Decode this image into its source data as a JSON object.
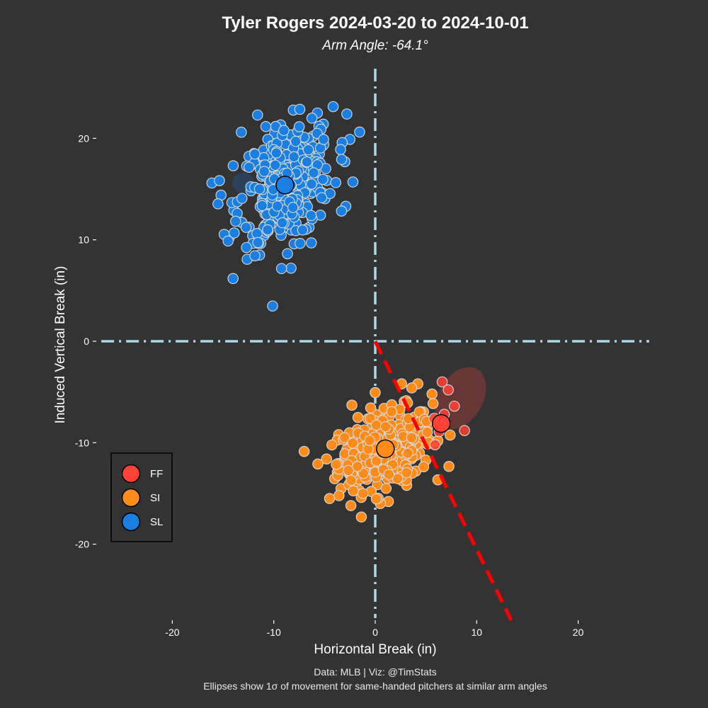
{
  "chart_data": {
    "type": "scatter",
    "title": "Tyler Rogers 2024-03-20 to 2024-10-01",
    "subtitle": "Arm Angle: -64.1°",
    "xlabel": "Horizontal Break (in)",
    "ylabel": "Induced Vertical Break (in)",
    "xlim": [
      -27,
      27
    ],
    "ylim": [
      -27.5,
      27
    ],
    "x_ticks": [
      -20,
      -10,
      0,
      10,
      20
    ],
    "y_ticks": [
      -20,
      -10,
      0,
      10,
      20
    ],
    "x_tick_labels": [
      "-20",
      "-10",
      "0",
      "10",
      "20"
    ],
    "y_tick_labels": [
      "-20",
      "-10",
      "0",
      "10",
      "20"
    ],
    "grid": false,
    "legend_position": "bottom-left",
    "caption_line1": "Data: MLB | Viz: @TimStats",
    "caption_line2": "Ellipses show 1σ of movement for same-handed pitchers at similar arm angles",
    "reference_lines": {
      "horizontal_zero": {
        "y": 0,
        "color": "#add8e6",
        "style": "dash-dot"
      },
      "vertical_zero": {
        "x": 0,
        "color": "#add8e6",
        "style": "dash-dot"
      },
      "arm_angle_line": {
        "x": [
          0,
          13.4
        ],
        "y": [
          0,
          -27.5
        ],
        "color": "#ff0000",
        "style": "dashed"
      }
    },
    "series": [
      {
        "name": "FF",
        "color": "#ff4136",
        "mean": {
          "x": 6.5,
          "y": -8.1
        },
        "ellipse": {
          "cx": 8.4,
          "cy": -5.6,
          "rx": 2.2,
          "ry": 3.3,
          "rotation_deg": 30,
          "color": "#7a3a3a"
        },
        "points": [
          {
            "x": 6.6,
            "y": -4.0
          },
          {
            "x": 7.2,
            "y": -4.8
          },
          {
            "x": 7.8,
            "y": -6.4
          },
          {
            "x": 8.8,
            "y": -8.8
          },
          {
            "x": 6.8,
            "y": -7.2
          },
          {
            "x": 5.8,
            "y": -7.6
          },
          {
            "x": 6.3,
            "y": -8.9
          },
          {
            "x": 5.9,
            "y": -10.2
          }
        ]
      },
      {
        "name": "SI",
        "color": "#ff8c1a",
        "mean": {
          "x": 1.0,
          "y": -10.6
        },
        "ellipse": null,
        "cluster": {
          "center_x": 1.0,
          "center_y": -10.6,
          "sd_x": 2.3,
          "sd_y": 1.9,
          "corr": 0.35,
          "count": 380
        },
        "points": [
          {
            "x": -4.8,
            "y": -11.6
          },
          {
            "x": -4.5,
            "y": -15.5
          },
          {
            "x": -2.4,
            "y": -16.2
          },
          {
            "x": -2.3,
            "y": -6.3
          },
          {
            "x": 2.6,
            "y": -4.2
          },
          {
            "x": 4.2,
            "y": -4.2
          },
          {
            "x": 3.6,
            "y": -4.6
          },
          {
            "x": 5.6,
            "y": -5.2
          },
          {
            "x": 3.1,
            "y": -14.2
          },
          {
            "x": 1.3,
            "y": -15.8
          },
          {
            "x": 0.5,
            "y": -16.0
          },
          {
            "x": -1.6,
            "y": -14.7
          },
          {
            "x": 4.0,
            "y": -12.8
          },
          {
            "x": 5.2,
            "y": -8.4
          },
          {
            "x": 4.6,
            "y": -10.0
          },
          {
            "x": -3.6,
            "y": -9.2
          }
        ]
      },
      {
        "name": "SL",
        "color": "#1a7fe0",
        "mean": {
          "x": -8.9,
          "y": 15.4
        },
        "ellipse": {
          "cx": -13.0,
          "cy": 15.6,
          "rx": 1.1,
          "ry": 1.0,
          "rotation_deg": 0,
          "color": "#2b4866"
        },
        "cluster": {
          "center_x": -8.8,
          "center_y": 15.5,
          "sd_x": 2.3,
          "sd_y": 3.0,
          "corr": 0.3,
          "count": 330
        },
        "points": [
          {
            "x": -16.1,
            "y": 15.6
          },
          {
            "x": -15.2,
            "y": 14.4
          },
          {
            "x": -11.6,
            "y": 22.3
          },
          {
            "x": -8.3,
            "y": 7.2
          },
          {
            "x": -2.8,
            "y": 22.4
          },
          {
            "x": -2.5,
            "y": 19.9
          },
          {
            "x": -5.7,
            "y": 22.5
          },
          {
            "x": -2.9,
            "y": 13.3
          },
          {
            "x": -13.2,
            "y": 20.6
          },
          {
            "x": -11.4,
            "y": 8.5
          },
          {
            "x": -14.4,
            "y": 10.2
          },
          {
            "x": -14.0,
            "y": 17.3
          },
          {
            "x": -2.2,
            "y": 15.7
          },
          {
            "x": -8.0,
            "y": 9.6
          },
          {
            "x": -6.3,
            "y": 9.7
          },
          {
            "x": -3.0,
            "y": 17.7
          }
        ]
      }
    ]
  }
}
